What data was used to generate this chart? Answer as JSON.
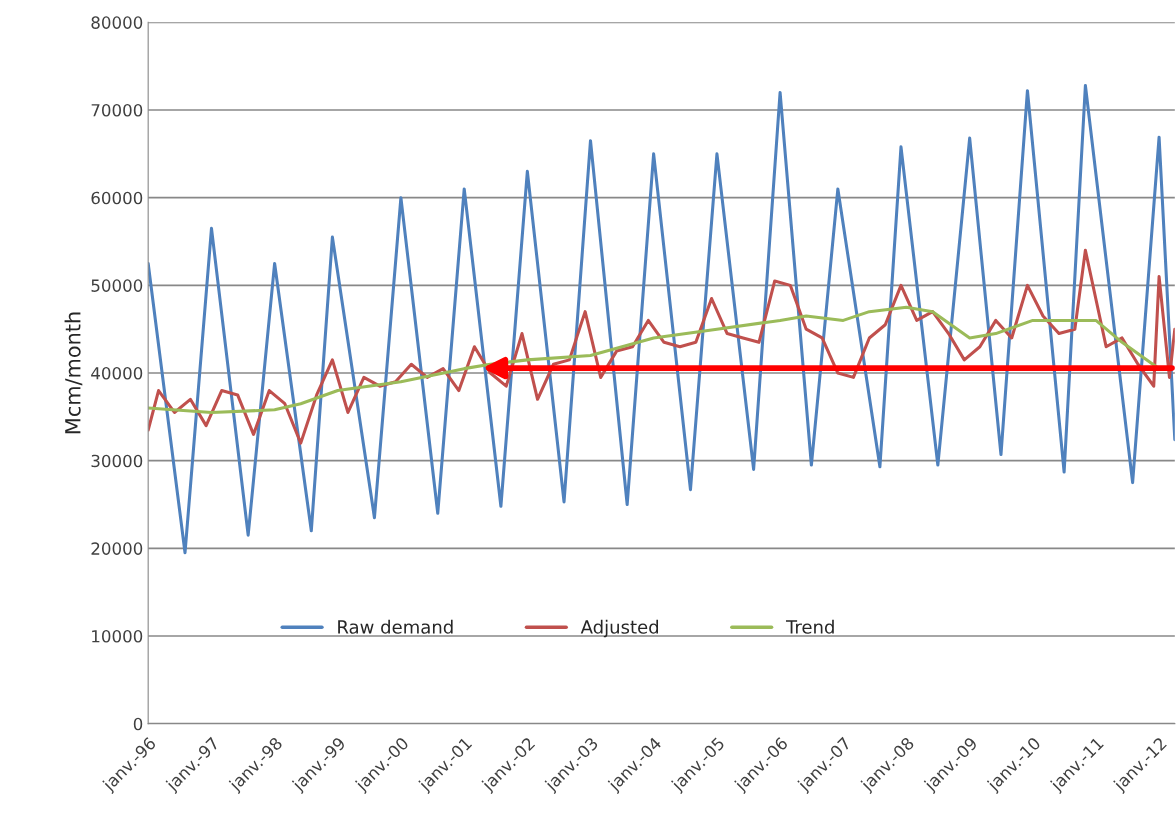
{
  "chart_data": {
    "type": "line",
    "ylabel": "Mcm/month",
    "xlim": [
      "1996-01",
      "2012-04"
    ],
    "xticks": [
      {
        "value": "1996-01",
        "label": "janv.-96"
      },
      {
        "value": "1997-01",
        "label": "janv.-97"
      },
      {
        "value": "1998-01",
        "label": "janv.-98"
      },
      {
        "value": "1999-01",
        "label": "janv.-99"
      },
      {
        "value": "2000-01",
        "label": "janv.-00"
      },
      {
        "value": "2001-01",
        "label": "janv.-01"
      },
      {
        "value": "2002-01",
        "label": "janv.-02"
      },
      {
        "value": "2003-01",
        "label": "janv.-03"
      },
      {
        "value": "2004-01",
        "label": "janv.-04"
      },
      {
        "value": "2005-01",
        "label": "janv.-05"
      },
      {
        "value": "2006-01",
        "label": "janv.-06"
      },
      {
        "value": "2007-01",
        "label": "janv.-07"
      },
      {
        "value": "2008-01",
        "label": "janv.-08"
      },
      {
        "value": "2009-01",
        "label": "janv.-09"
      },
      {
        "value": "2010-01",
        "label": "janv.-10"
      },
      {
        "value": "2011-01",
        "label": "janv.-11"
      },
      {
        "value": "2012-01",
        "label": "janv.-12"
      }
    ],
    "ylim": [
      0,
      80000
    ],
    "yticks": [
      0,
      10000,
      20000,
      30000,
      40000,
      50000,
      60000,
      70000,
      80000
    ],
    "grid": "y",
    "legend": "bottom",
    "marker": "none",
    "line_style": "solid",
    "series": [
      {
        "name": "Raw demand",
        "color": "#4f81bd",
        "x": [
          "1996-01",
          "1996-08",
          "1997-01",
          "1997-08",
          "1998-01",
          "1998-08",
          "1998-12",
          "1999-08",
          "2000-01",
          "2000-08",
          "2001-01",
          "2001-08",
          "2002-01",
          "2002-08",
          "2003-01",
          "2003-08",
          "2004-01",
          "2004-08",
          "2005-01",
          "2005-08",
          "2006-01",
          "2006-07",
          "2006-12",
          "2007-08",
          "2007-12",
          "2008-07",
          "2009-01",
          "2009-07",
          "2009-12",
          "2010-07",
          "2010-11",
          "2011-08",
          "2012-01",
          "2012-04"
        ],
        "values": [
          52500,
          19500,
          56500,
          21500,
          52500,
          22000,
          55500,
          23500,
          60000,
          24000,
          61000,
          24800,
          63000,
          25300,
          66500,
          25000,
          65000,
          26700,
          65000,
          29000,
          72000,
          29500,
          61000,
          29300,
          65800,
          29500,
          66800,
          30700,
          72200,
          28700,
          72800,
          27500,
          66900,
          32400
        ]
      },
      {
        "name": "Adjusted",
        "color": "#c0504d",
        "x": [
          "1996-01",
          "1996-03",
          "1996-06",
          "1996-09",
          "1996-12",
          "1997-03",
          "1997-06",
          "1997-09",
          "1997-12",
          "1998-03",
          "1998-06",
          "1998-09",
          "1998-12",
          "1999-03",
          "1999-06",
          "1999-09",
          "1999-12",
          "2000-03",
          "2000-06",
          "2000-09",
          "2000-12",
          "2001-03",
          "2001-06",
          "2001-09",
          "2001-12",
          "2002-03",
          "2002-06",
          "2002-09",
          "2002-12",
          "2003-03",
          "2003-06",
          "2003-09",
          "2003-12",
          "2004-03",
          "2004-06",
          "2004-09",
          "2004-12",
          "2005-03",
          "2005-06",
          "2005-09",
          "2005-12",
          "2006-03",
          "2006-06",
          "2006-09",
          "2006-12",
          "2007-03",
          "2007-06",
          "2007-09",
          "2007-12",
          "2008-03",
          "2008-06",
          "2008-09",
          "2008-12",
          "2009-03",
          "2009-06",
          "2009-09",
          "2009-12",
          "2010-03",
          "2010-06",
          "2010-09",
          "2010-11",
          "2011-03",
          "2011-06",
          "2011-09",
          "2011-12",
          "2012-01",
          "2012-03",
          "2012-04"
        ],
        "values": [
          33500,
          38000,
          35500,
          37000,
          34000,
          38000,
          37500,
          33000,
          38000,
          36500,
          32000,
          37500,
          41500,
          35500,
          39500,
          38500,
          39000,
          41000,
          39500,
          40500,
          38000,
          43000,
          40000,
          38500,
          44500,
          37000,
          41000,
          41500,
          47000,
          39500,
          42500,
          43000,
          46000,
          43500,
          43000,
          43500,
          48500,
          44500,
          44000,
          43500,
          50500,
          50000,
          45000,
          44000,
          40000,
          39500,
          44000,
          45500,
          50000,
          46000,
          47000,
          44500,
          41500,
          43000,
          46000,
          44000,
          50000,
          46500,
          44500,
          45000,
          54000,
          43000,
          44000,
          41000,
          38500,
          51000,
          39500,
          45000
        ]
      },
      {
        "name": "Trend",
        "color": "#9bbb59",
        "x": [
          "1996-01",
          "1997-01",
          "1998-01",
          "1998-06",
          "1999-01",
          "2000-01",
          "2001-01",
          "2001-06",
          "2002-01",
          "2003-01",
          "2004-01",
          "2005-01",
          "2006-01",
          "2006-06",
          "2007-01",
          "2007-06",
          "2008-01",
          "2008-06",
          "2009-01",
          "2009-06",
          "2010-01",
          "2011-01",
          "2011-06",
          "2012-01"
        ],
        "values": [
          36000,
          35500,
          35800,
          36500,
          38000,
          39000,
          40500,
          41000,
          41500,
          42000,
          44000,
          45000,
          46000,
          46500,
          46000,
          47000,
          47500,
          47000,
          44000,
          44500,
          46000,
          46000,
          43500,
          40500
        ]
      }
    ]
  }
}
